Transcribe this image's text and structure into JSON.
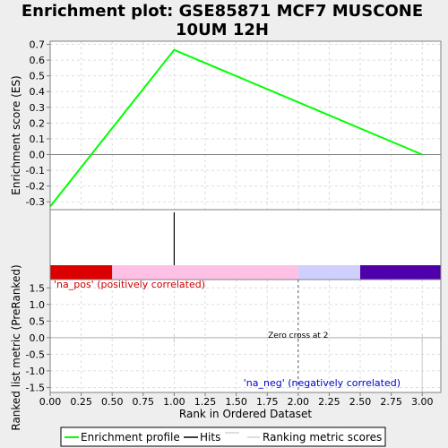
{
  "chart_data": {
    "type": "line",
    "title_lines": [
      "Enrichment plot: GSE85871 MCF7 MUSCONE",
      "10UM 12H"
    ],
    "es_panel": {
      "ylabel": "Enrichment score (ES)",
      "ylim": [
        -0.35,
        0.72
      ],
      "yticks": [
        -0.3,
        -0.2,
        -0.1,
        0.0,
        0.1,
        0.2,
        0.3,
        0.4,
        0.5,
        0.6,
        0.7
      ],
      "series": [
        {
          "values_x": [
            0,
            1,
            3
          ],
          "values_y": [
            -0.33,
            0.665,
            0.0
          ],
          "color": "#00ff00"
        }
      ]
    },
    "hits_panel": {
      "hits": [
        1
      ]
    },
    "color_bar": [
      {
        "from": 0.0,
        "to": 0.5,
        "color": "#dd0000"
      },
      {
        "from": 0.5,
        "to": 2.0,
        "color": "#ffc0e6"
      },
      {
        "from": 2.0,
        "to": 2.5,
        "color": "#d0d0ff"
      },
      {
        "from": 2.5,
        "to": 3.15,
        "color": "#5000aa"
      }
    ],
    "rank_panel": {
      "ylabel": "Ranked list metric (PreRanked)",
      "ylim": [
        -1.65,
        1.75
      ],
      "yticks": [
        -1.5,
        -1.0,
        -0.5,
        0.0,
        0.5,
        1.0,
        1.5
      ],
      "bars_x": [
        1,
        2,
        3
      ],
      "zero_cross": 2,
      "pos_label": "'na_pos' (positively correlated)",
      "neg_label": "'na_neg' (negatively correlated)",
      "zero_cross_label": "Zero cross at 2"
    },
    "xlabel": "Rank in Ordered Dataset",
    "xlim": [
      0,
      3.15
    ],
    "xticks": [
      "0.00",
      "0.25",
      "0.50",
      "0.75",
      "1.00",
      "1.25",
      "1.50",
      "1.75",
      "2.00",
      "2.25",
      "2.50",
      "2.75",
      "3.00"
    ],
    "legend": {
      "placement": "bottom",
      "items": [
        {
          "label": "Enrichment profile",
          "color": "#00ff00"
        },
        {
          "label": "Hits",
          "color": "#000000"
        },
        {
          "label": "Ranking metric scores",
          "color": "#bbbbbb"
        }
      ]
    }
  }
}
